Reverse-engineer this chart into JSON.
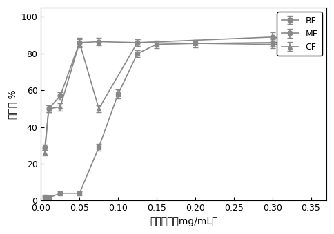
{
  "BF_x": [
    0.005,
    0.01,
    0.025,
    0.05,
    0.075,
    0.1,
    0.125,
    0.15,
    0.2,
    0.3,
    0.35
  ],
  "BF_y": [
    2.0,
    1.5,
    4.0,
    4.0,
    29.0,
    58.0,
    80.0,
    85.0,
    85.5,
    86.0,
    86.5
  ],
  "BF_err": [
    0.5,
    0.5,
    1.0,
    1.0,
    2.0,
    2.5,
    2.0,
    2.0,
    2.0,
    2.0,
    2.0
  ],
  "MF_x": [
    0.005,
    0.01,
    0.025,
    0.05,
    0.075,
    0.125,
    0.3,
    0.35
  ],
  "MF_y": [
    29.0,
    50.0,
    57.0,
    86.0,
    86.5,
    86.0,
    89.0,
    86.0
  ],
  "MF_err": [
    1.5,
    2.0,
    2.0,
    2.0,
    2.0,
    2.0,
    2.5,
    2.0
  ],
  "CF_x": [
    0.005,
    0.01,
    0.025,
    0.05,
    0.075,
    0.125,
    0.3,
    0.35
  ],
  "CF_y": [
    26.0,
    50.0,
    51.0,
    86.0,
    50.0,
    86.0,
    85.0,
    86.0
  ],
  "CF_err": [
    1.5,
    2.0,
    2.0,
    2.5,
    2.0,
    2.0,
    2.0,
    2.0
  ],
  "xlabel": "样品浓度（mg/mL）",
  "ylabel": "抑制率 %",
  "xlim": [
    0,
    0.37
  ],
  "ylim": [
    0,
    105
  ],
  "xticks": [
    0.0,
    0.05,
    0.1,
    0.15,
    0.2,
    0.25,
    0.3,
    0.35
  ],
  "yticks": [
    0,
    20,
    40,
    60,
    80,
    100
  ],
  "legend_labels": [
    "BF",
    "MF",
    "CF"
  ],
  "line_color": "#888888",
  "marker_BF": "s",
  "marker_MF": "o",
  "marker_CF": "^",
  "markersize": 5,
  "linewidth": 1.2,
  "capsize": 3
}
